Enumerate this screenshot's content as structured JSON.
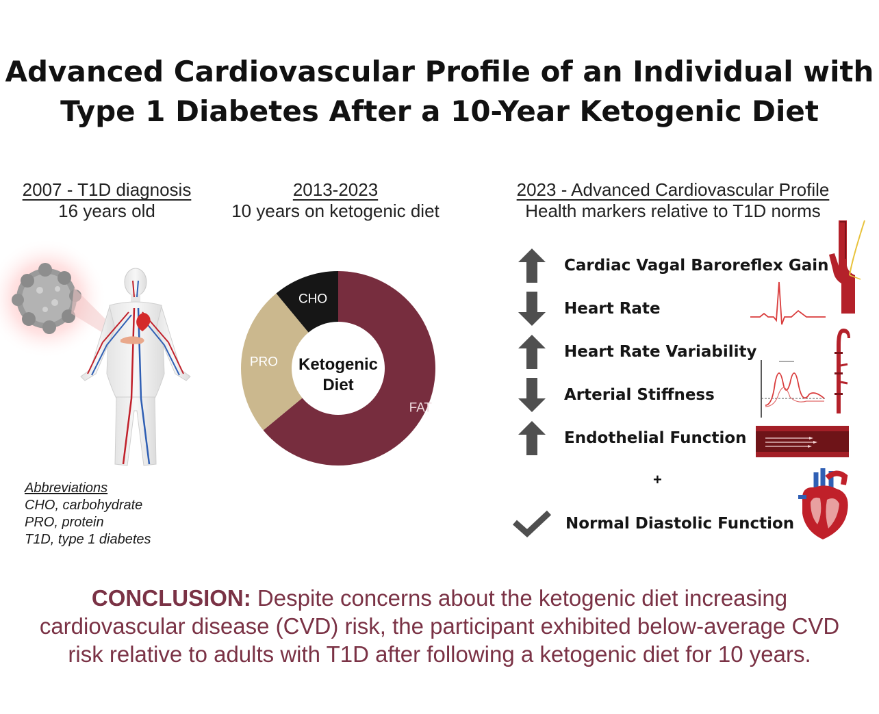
{
  "title": {
    "line1": "Advanced Cardiovascular Profile of an Individual with",
    "line2": "Type 1 Diabetes After a 10-Year Ketogenic Diet"
  },
  "column1": {
    "heading": "2007 - T1D diagnosis",
    "subheading": "16 years old"
  },
  "column2": {
    "heading": "2013-2023",
    "subheading": "10 years on ketogenic diet"
  },
  "column3": {
    "heading": "2023 - Advanced Cardiovascular Profile",
    "subheading": "Health markers relative to T1D norms"
  },
  "donut": {
    "center_line1": "Ketogenic",
    "center_line2": "Diet",
    "slices": [
      {
        "label": "FAT",
        "share": 0.64,
        "color": "#772d3e"
      },
      {
        "label": "PRO",
        "share": 0.25,
        "color": "#cbb88e"
      },
      {
        "label": "CHO",
        "share": 0.11,
        "color": "#161616"
      }
    ]
  },
  "markers": [
    {
      "label": "Cardiac Vagal Baroreflex Gain",
      "direction": "up",
      "icon": "arrow-up-icon"
    },
    {
      "label": "Heart Rate",
      "direction": "down",
      "icon": "arrow-down-icon"
    },
    {
      "label": "Heart Rate Variability",
      "direction": "up",
      "icon": "arrow-up-icon"
    },
    {
      "label": "Arterial Stiffness",
      "direction": "down",
      "icon": "arrow-down-icon"
    },
    {
      "label": "Endothelial Function",
      "direction": "up",
      "icon": "arrow-up-icon"
    }
  ],
  "plus": "+",
  "final_marker": {
    "label": "Normal Diastolic Function",
    "icon": "checkmark-icon"
  },
  "abbreviations": {
    "heading": "Abbreviations",
    "items": [
      "CHO, carbohydrate",
      "PRO, protein",
      "T1D, type 1 diabetes"
    ]
  },
  "conclusion": {
    "lead": "CONCLUSION:",
    "line1": " Despite concerns about the ketogenic diet increasing",
    "line2": "cardiovascular disease (CVD) risk, the participant exhibited below-average CVD",
    "line3": "risk relative to adults with T1D after following a ketogenic diet for 10 years."
  },
  "colors": {
    "accent": "#772d3e",
    "conclusion": "#7a3245",
    "protein": "#cbb88e",
    "arrow": "#4f4f4f",
    "vessel_red": "#c0202a",
    "vessel_blue": "#2f5fb4"
  }
}
